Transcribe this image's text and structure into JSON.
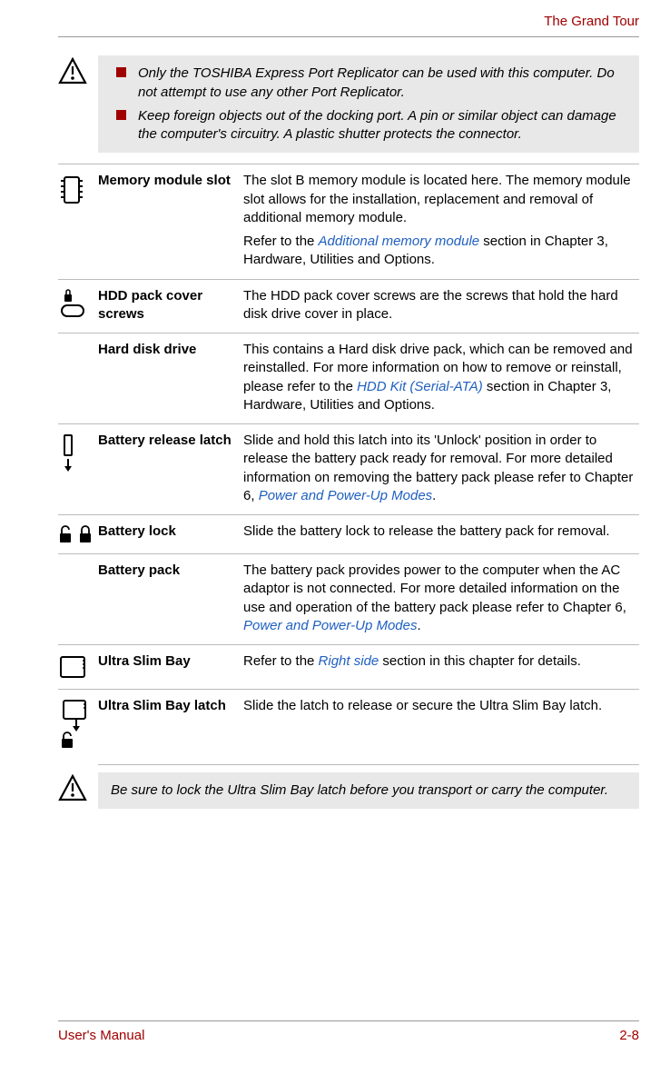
{
  "header": {
    "chapter_title": "The Grand Tour"
  },
  "warning": {
    "items": [
      "Only the TOSHIBA Express Port Replicator can be used with this computer. Do not attempt to use any other Port Replicator.",
      "Keep foreign objects out of the docking port. A pin or similar object can damage the computer's circuitry. A plastic shutter protects the connector."
    ]
  },
  "definitions": [
    {
      "icon": "memory-chip-icon",
      "term": "Memory module slot",
      "paras": [
        {
          "plain": "The slot B memory module is located here. The memory module slot allows for the installation, replacement and removal of additional memory module."
        },
        {
          "pre": "Refer to the ",
          "link": "Additional memory module",
          "post": " section in Chapter 3, Hardware, Utilities and Options."
        }
      ]
    },
    {
      "icon": "hdd-lock-icon",
      "term": "HDD pack cover screws",
      "paras": [
        {
          "plain": "The HDD pack cover screws are the screws that hold the hard disk drive cover in place."
        }
      ]
    },
    {
      "icon": "",
      "term": "Hard disk drive",
      "paras": [
        {
          "pre": "This contains a Hard disk drive pack, which can be removed and reinstalled. For more information on how to remove or reinstall, please refer to the ",
          "link": "HDD Kit (Serial-ATA)",
          "post": " section in Chapter 3, Hardware, Utilities and Options."
        }
      ]
    },
    {
      "icon": "battery-release-icon",
      "term": "Battery release latch",
      "paras": [
        {
          "pre": "Slide and hold this latch into its 'Unlock' position in order to release the battery pack ready for removal. For more detailed information on removing the battery pack please refer to Chapter 6, ",
          "link": "Power and Power-Up Modes",
          "post": "."
        }
      ]
    },
    {
      "icon": "lock-unlock-icon",
      "term": "Battery lock",
      "paras": [
        {
          "plain": "Slide the battery lock to release the battery pack for removal."
        }
      ]
    },
    {
      "icon": "",
      "term": "Battery pack",
      "paras": [
        {
          "pre": "The battery pack provides power to the computer when the AC adaptor is not connected. For more detailed information on the use and operation of the battery pack please refer to Chapter 6, ",
          "link": "Power and Power-Up Modes",
          "post": "."
        }
      ]
    },
    {
      "icon": "slim-bay-icon",
      "term": "Ultra Slim Bay",
      "paras": [
        {
          "pre": "Refer to the ",
          "link": "Right side",
          "post": " section in this chapter for details."
        }
      ]
    },
    {
      "icon": "slim-bay-latch-icon",
      "term": "Ultra Slim Bay latch",
      "paras": [
        {
          "plain": "Slide the latch to release or secure the Ultra Slim Bay latch."
        }
      ]
    }
  ],
  "note": {
    "text": "Be sure to lock the Ultra Slim Bay latch before you transport or carry the computer."
  },
  "footer": {
    "left": "User's Manual",
    "right": "2-8"
  },
  "colors": {
    "accent": "#a00000",
    "link": "#2060c0",
    "callout_bg": "#e8e8e8",
    "rule": "#bbbbbb"
  }
}
